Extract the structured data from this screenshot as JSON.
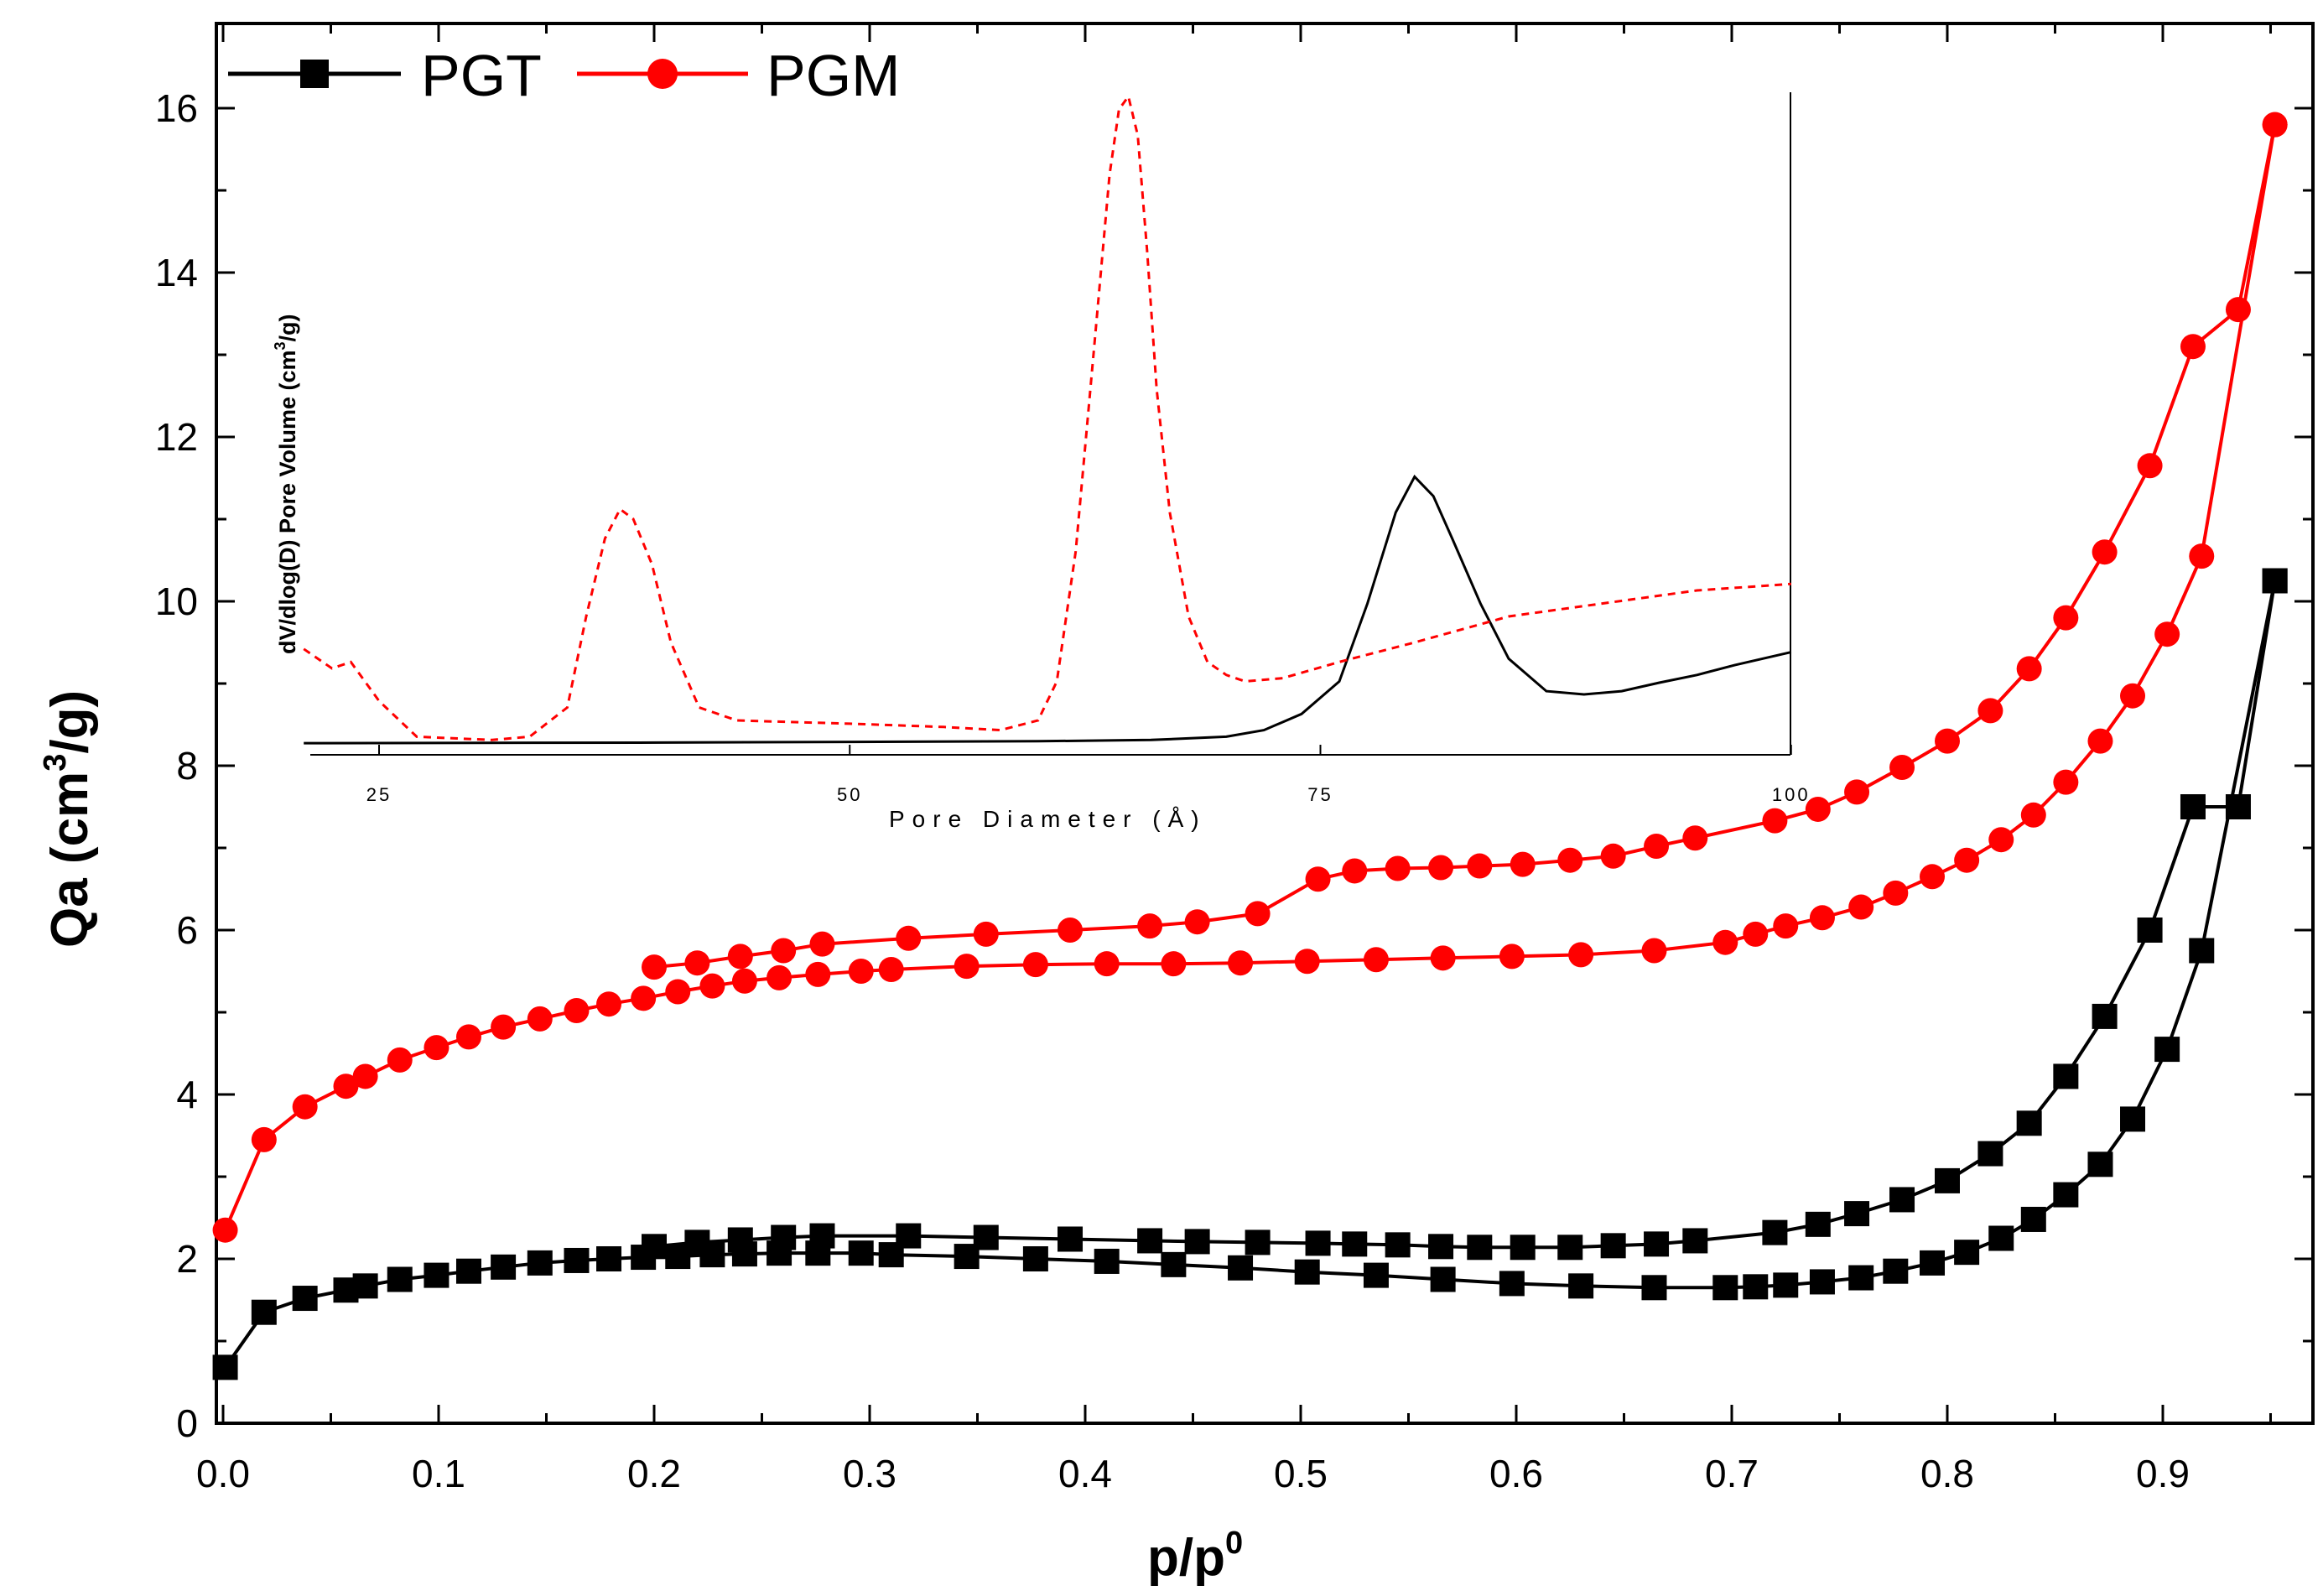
{
  "chart_data": [
    {
      "type": "line",
      "title": "",
      "xlabel": "p/p",
      "xlabel_superscript": "0",
      "ylabel": "Qa (cm",
      "ylabel_superscript": "3",
      "ylabel_suffix": "/g)",
      "xlim": [
        -0.012,
        0.957
      ],
      "ylim": [
        0,
        17
      ],
      "xticks": [
        "0.0",
        "0.1",
        "0.2",
        "0.3",
        "0.4",
        "0.5",
        "0.6",
        "0.7",
        "0.8",
        "0.9"
      ],
      "yticks": [
        "0",
        "2",
        "4",
        "6",
        "8",
        "10",
        "12",
        "14",
        "16"
      ],
      "legend_position": "top-left",
      "series": [
        {
          "name": "PGT",
          "color": "#000000",
          "marker": "square",
          "adsorption": {
            "x": [
              0.001,
              0.019,
              0.038,
              0.057,
              0.066,
              0.082,
              0.099,
              0.114,
              0.13,
              0.147,
              0.164,
              0.179,
              0.195,
              0.211,
              0.227,
              0.242,
              0.258,
              0.276,
              0.296,
              0.31,
              0.345,
              0.377,
              0.41,
              0.441,
              0.472,
              0.503,
              0.535,
              0.566,
              0.598,
              0.63,
              0.664,
              0.697,
              0.711,
              0.725,
              0.742,
              0.76,
              0.776,
              0.793,
              0.809,
              0.825,
              0.84,
              0.855,
              0.871,
              0.886,
              0.902,
              0.918,
              0.952
            ],
            "y": [
              0.68,
              1.35,
              1.52,
              1.62,
              1.67,
              1.75,
              1.8,
              1.85,
              1.9,
              1.95,
              1.98,
              2.0,
              2.02,
              2.03,
              2.05,
              2.06,
              2.07,
              2.07,
              2.07,
              2.05,
              2.03,
              2.0,
              1.97,
              1.93,
              1.89,
              1.84,
              1.8,
              1.75,
              1.7,
              1.67,
              1.65,
              1.65,
              1.66,
              1.68,
              1.72,
              1.77,
              1.85,
              1.95,
              2.08,
              2.25,
              2.48,
              2.78,
              3.15,
              3.7,
              4.55,
              5.75,
              10.25
            ]
          },
          "desorption": {
            "x": [
              0.952,
              0.935,
              0.914,
              0.894,
              0.873,
              0.855,
              0.838,
              0.82,
              0.8,
              0.779,
              0.758,
              0.74,
              0.72,
              0.683,
              0.665,
              0.645,
              0.625,
              0.603,
              0.583,
              0.565,
              0.545,
              0.525,
              0.508,
              0.48,
              0.452,
              0.43,
              0.393,
              0.354,
              0.318,
              0.278,
              0.26,
              0.24,
              0.22,
              0.2
            ],
            "y": [
              10.25,
              7.5,
              7.5,
              6.0,
              4.95,
              4.22,
              3.65,
              3.28,
              2.95,
              2.72,
              2.55,
              2.42,
              2.32,
              2.22,
              2.18,
              2.16,
              2.14,
              2.14,
              2.14,
              2.15,
              2.17,
              2.18,
              2.19,
              2.2,
              2.21,
              2.22,
              2.24,
              2.26,
              2.28,
              2.28,
              2.26,
              2.23,
              2.2,
              2.15
            ]
          }
        },
        {
          "name": "PGM",
          "color": "#ff0000",
          "marker": "circle",
          "adsorption": {
            "x": [
              0.001,
              0.019,
              0.038,
              0.057,
              0.066,
              0.082,
              0.099,
              0.114,
              0.13,
              0.147,
              0.164,
              0.179,
              0.195,
              0.211,
              0.227,
              0.242,
              0.258,
              0.276,
              0.296,
              0.31,
              0.345,
              0.377,
              0.41,
              0.441,
              0.472,
              0.503,
              0.535,
              0.566,
              0.598,
              0.63,
              0.664,
              0.697,
              0.711,
              0.725,
              0.742,
              0.76,
              0.776,
              0.793,
              0.809,
              0.825,
              0.84,
              0.855,
              0.871,
              0.886,
              0.902,
              0.918,
              0.952
            ],
            "y": [
              2.35,
              3.45,
              3.85,
              4.1,
              4.22,
              4.42,
              4.57,
              4.7,
              4.82,
              4.92,
              5.02,
              5.1,
              5.17,
              5.25,
              5.32,
              5.38,
              5.42,
              5.46,
              5.5,
              5.52,
              5.56,
              5.58,
              5.59,
              5.59,
              5.6,
              5.62,
              5.64,
              5.66,
              5.68,
              5.7,
              5.75,
              5.85,
              5.95,
              6.05,
              6.15,
              6.28,
              6.45,
              6.65,
              6.85,
              7.1,
              7.4,
              7.8,
              8.3,
              8.85,
              9.6,
              10.55,
              15.8
            ]
          },
          "desorption": {
            "x": [
              0.952,
              0.935,
              0.914,
              0.894,
              0.873,
              0.855,
              0.838,
              0.82,
              0.8,
              0.779,
              0.758,
              0.74,
              0.72,
              0.683,
              0.665,
              0.645,
              0.625,
              0.603,
              0.583,
              0.565,
              0.545,
              0.525,
              0.508,
              0.48,
              0.452,
              0.43,
              0.393,
              0.354,
              0.318,
              0.278,
              0.26,
              0.24,
              0.22,
              0.2
            ],
            "y": [
              15.8,
              13.55,
              13.1,
              11.65,
              10.6,
              9.8,
              9.18,
              8.67,
              8.3,
              7.98,
              7.68,
              7.47,
              7.33,
              7.12,
              7.02,
              6.9,
              6.85,
              6.8,
              6.78,
              6.76,
              6.75,
              6.72,
              6.62,
              6.2,
              6.1,
              6.05,
              6.0,
              5.95,
              5.9,
              5.83,
              5.75,
              5.68,
              5.6,
              5.55
            ]
          }
        }
      ]
    },
    {
      "type": "line",
      "title": "",
      "role": "inset",
      "xlabel": "Pore Diameter (Å)",
      "ylabel": "dV/dlog(D) Pore Volume (cm",
      "ylabel_superscript": "3",
      "ylabel_suffix": "/g)",
      "xlim": [
        21,
        100
      ],
      "ylim": [
        0,
        1
      ],
      "xticks": [
        25,
        50,
        75,
        100
      ],
      "y_units": "relative (no y tick labels shown)",
      "series": [
        {
          "name": "PGT",
          "color": "#000000",
          "style": "solid",
          "x": [
            21,
            40,
            60,
            66,
            70,
            72,
            74,
            76,
            77.5,
            79,
            80,
            81,
            82,
            83.5,
            85,
            87,
            89,
            91,
            93,
            95,
            97,
            100
          ],
          "y": [
            0.005,
            0.006,
            0.008,
            0.01,
            0.015,
            0.025,
            0.05,
            0.1,
            0.22,
            0.36,
            0.415,
            0.385,
            0.32,
            0.22,
            0.135,
            0.085,
            0.08,
            0.085,
            0.098,
            0.11,
            0.125,
            0.145
          ]
        },
        {
          "name": "PGM",
          "color": "#ff0000",
          "style": "dashed",
          "x": [
            21,
            22.5,
            23.5,
            25,
            27,
            31,
            33,
            35,
            36,
            37,
            37.8,
            38.5,
            39.5,
            40.5,
            42,
            44,
            50,
            55,
            58,
            60,
            61,
            62,
            63,
            63.8,
            64.3,
            64.8,
            65.3,
            65.8,
            66.3,
            67,
            68,
            69,
            70,
            71,
            73,
            76,
            80,
            85,
            90,
            95,
            100
          ],
          "y": [
            0.15,
            0.12,
            0.13,
            0.07,
            0.015,
            0.01,
            0.015,
            0.06,
            0.2,
            0.32,
            0.365,
            0.35,
            0.28,
            0.16,
            0.06,
            0.04,
            0.035,
            0.03,
            0.025,
            0.04,
            0.1,
            0.3,
            0.62,
            0.88,
            0.98,
            1.0,
            0.94,
            0.76,
            0.55,
            0.36,
            0.2,
            0.13,
            0.11,
            0.1,
            0.105,
            0.13,
            0.16,
            0.2,
            0.22,
            0.24,
            0.25
          ]
        }
      ]
    }
  ]
}
